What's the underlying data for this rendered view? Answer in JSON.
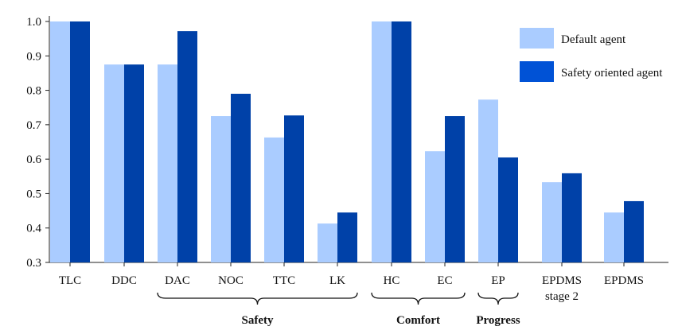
{
  "chart_data": {
    "type": "bar",
    "categories": [
      "TLC",
      "DDC",
      "DAC",
      "NOC",
      "TTC",
      "LK",
      "HC",
      "EC",
      "EP",
      "EPDMS\nstage 2",
      "EPDMS"
    ],
    "series": [
      {
        "name": "Default agent",
        "color": "#aaccff",
        "values": [
          1.0,
          0.875,
          0.875,
          0.725,
          0.663,
          0.413,
          1.0,
          0.623,
          0.773,
          0.533,
          0.445
        ]
      },
      {
        "name": "Safety oriented agent",
        "color": "#0041a8",
        "legend_color": "#0052d6",
        "values": [
          1.0,
          0.875,
          0.972,
          0.79,
          0.727,
          0.445,
          1.0,
          0.725,
          0.605,
          0.559,
          0.478
        ]
      }
    ],
    "groups": [
      {
        "label": "Safety",
        "from": "DAC",
        "to": "LK"
      },
      {
        "label": "Comfort",
        "from": "HC",
        "to": "EC"
      },
      {
        "label": "Progress",
        "from": "EP",
        "to": "EP"
      }
    ],
    "yticks": [
      "0.3",
      "0.4",
      "0.5",
      "0.6",
      "0.7",
      "0.8",
      "0.9",
      "1.0"
    ],
    "ylim": [
      0.3,
      1.0
    ],
    "xlabel": "",
    "ylabel": "",
    "title": "",
    "grid": false,
    "legend_position": "top-right"
  }
}
